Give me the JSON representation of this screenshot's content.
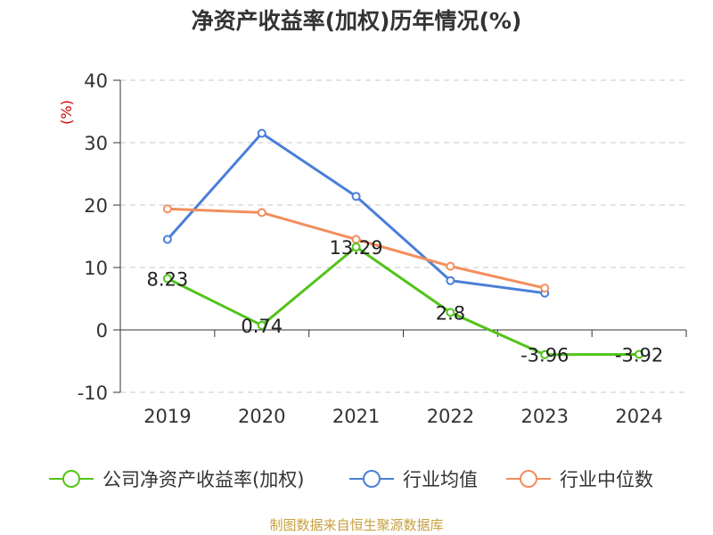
{
  "chart_data": {
    "type": "line",
    "title": "净资产收益率(加权)历年情况(%)",
    "ylabel": "(%)",
    "xlabel": "",
    "categories": [
      "2019",
      "2020",
      "2021",
      "2022",
      "2023",
      "2024"
    ],
    "ylim": [
      -10,
      40
    ],
    "yticks": [
      -10,
      0,
      10,
      20,
      30,
      40
    ],
    "grid": true,
    "legend_position": "bottom",
    "series": [
      {
        "name": "公司净资产收益率(加权)",
        "color": "#52c41a",
        "values": [
          8.23,
          0.74,
          13.29,
          2.8,
          -3.96,
          -3.92
        ],
        "labels": [
          "8.23",
          "0.74",
          "13.29",
          "2.8",
          "-3.96",
          "-3.92"
        ]
      },
      {
        "name": "行业均值",
        "color": "#4a7fd6",
        "values": [
          14.5,
          31.5,
          21.4,
          7.9,
          5.9,
          null
        ]
      },
      {
        "name": "行业中位数",
        "color": "#f28e5c",
        "values": [
          19.4,
          18.8,
          14.5,
          10.2,
          6.7,
          null
        ]
      }
    ]
  },
  "footer": {
    "source": "制图数据来自恒生聚源数据库"
  }
}
